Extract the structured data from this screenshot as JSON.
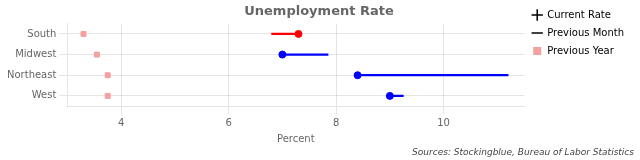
{
  "chart_data": {
    "type": "dot",
    "title": "Unemployment Rate",
    "xlabel": "Percent",
    "annotations": [
      "Sources: Stockingblue, Bureau of Labor Statistics"
    ],
    "orientation": "horizontal",
    "categories": [
      "South",
      "Midwest",
      "Northeast",
      "West"
    ],
    "series": [
      {
        "name": "Current Rate",
        "type": "scatter",
        "marker": "circle",
        "colors": [
          "red",
          "blue",
          "blue",
          "blue"
        ],
        "values": [
          7.3,
          7.0,
          8.4,
          9.0
        ]
      },
      {
        "name": "Previous Month",
        "type": "line",
        "colors": [
          "red",
          "blue",
          "blue",
          "blue"
        ],
        "values": [
          6.8,
          7.85,
          11.2,
          9.25
        ]
      },
      {
        "name": "Previous Year",
        "type": "scatter",
        "marker": "square",
        "color": "#f4a0a0",
        "values": [
          3.3,
          3.55,
          3.75,
          3.75
        ]
      }
    ],
    "xlim": [
      3.0,
      11.5
    ],
    "xticks": [
      4,
      6,
      8,
      10
    ],
    "grid": true,
    "legend": "upper right"
  }
}
